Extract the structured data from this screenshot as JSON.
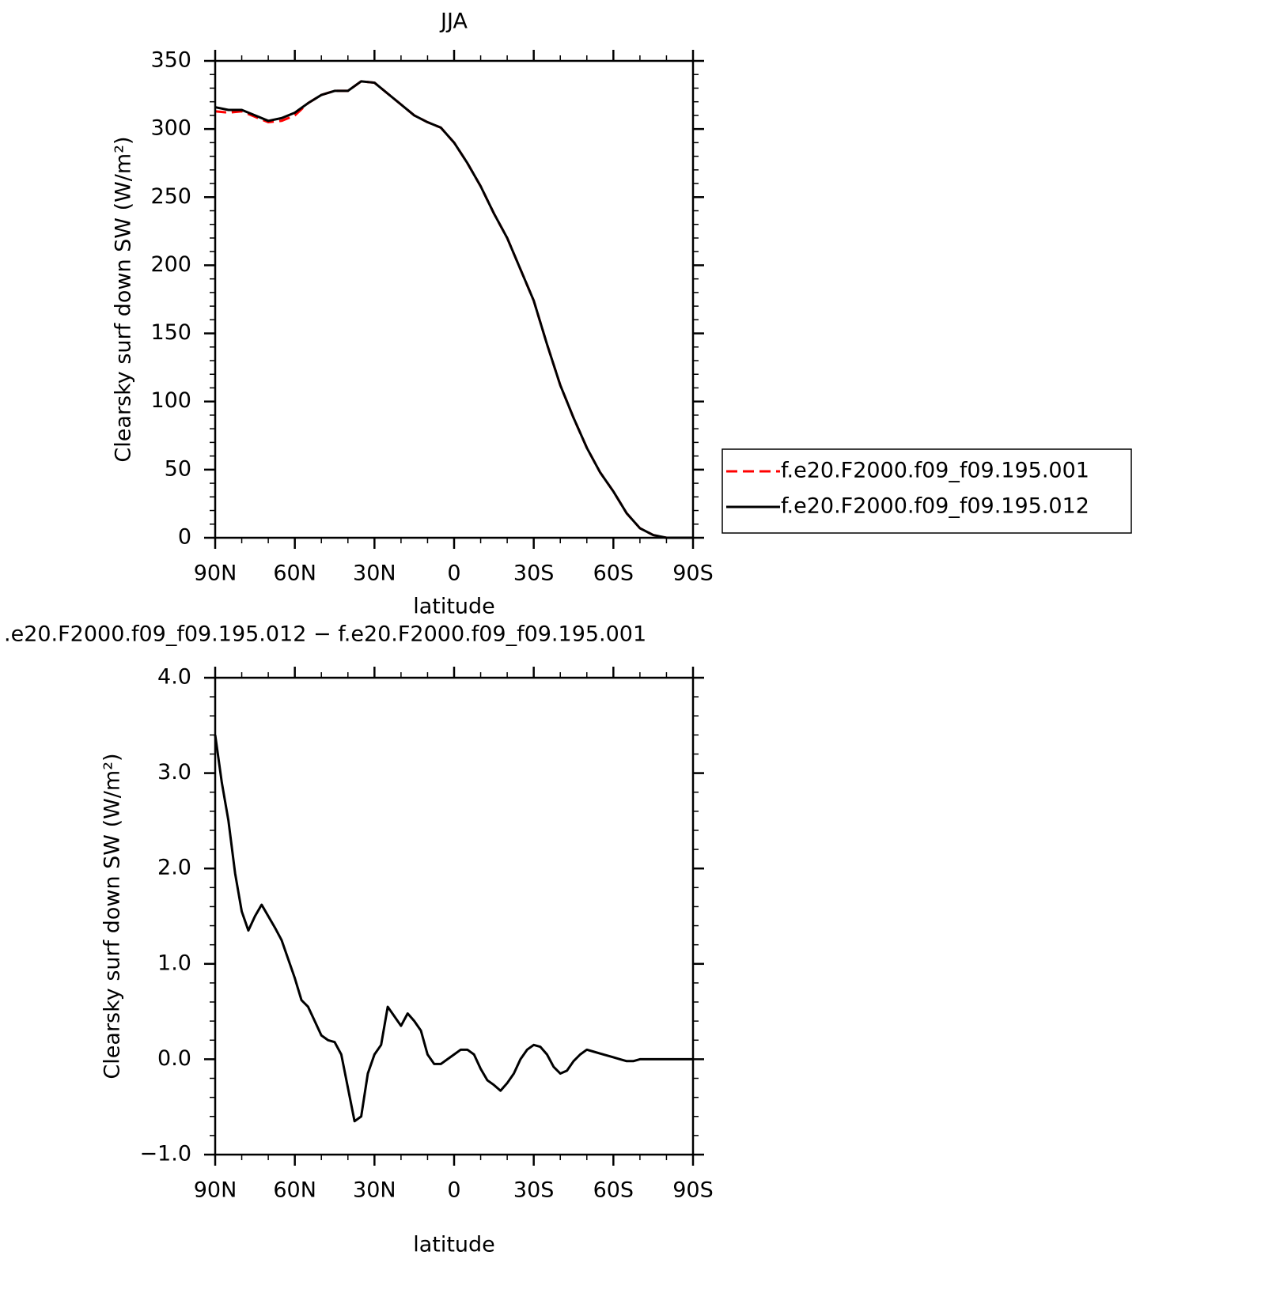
{
  "chart_data": [
    {
      "type": "line",
      "title": "JJA",
      "xlabel": "latitude",
      "ylabel": "Clearsky surf down SW (W/m²)",
      "x": [
        90,
        85,
        80,
        75,
        70,
        65,
        60,
        55,
        50,
        45,
        40,
        35,
        30,
        25,
        20,
        15,
        10,
        5,
        0,
        -5,
        -10,
        -15,
        -20,
        -25,
        -30,
        -35,
        -40,
        -45,
        -50,
        -55,
        -60,
        -65,
        -70,
        -75,
        -80,
        -85,
        -90
      ],
      "series": [
        {
          "name": "f.e20.F2000.f09_f09.195.001",
          "color": "#ff0000",
          "dash": true,
          "values": [
            313,
            312,
            313,
            309,
            305,
            306,
            310,
            319,
            325,
            328,
            328,
            335,
            334,
            326,
            318,
            310,
            305,
            301,
            290,
            275,
            258,
            238,
            220,
            197,
            174,
            142,
            112,
            88,
            66,
            48,
            34,
            18,
            7,
            2,
            0,
            0,
            0
          ]
        },
        {
          "name": "f.e20.F2000.f09_f09.195.012",
          "color": "#000000",
          "dash": false,
          "values": [
            316,
            314,
            314,
            310,
            306,
            308,
            312,
            319,
            325,
            328,
            328,
            335,
            334,
            326,
            318,
            310,
            305,
            301,
            290,
            275,
            258,
            238,
            220,
            197,
            174,
            142,
            112,
            88,
            66,
            48,
            34,
            18,
            7,
            2,
            0,
            0,
            0
          ]
        }
      ],
      "xlim": [
        90,
        -90
      ],
      "xticks": [
        {
          "value": 90,
          "label": "90N"
        },
        {
          "value": 60,
          "label": "60N"
        },
        {
          "value": 30,
          "label": "30N"
        },
        0,
        {
          "value": -30,
          "label": "30S"
        },
        {
          "value": -60,
          "label": "60S"
        },
        {
          "value": -90,
          "label": "90S"
        }
      ],
      "xminorticks": [
        80,
        70,
        50,
        40,
        20,
        10,
        -10,
        -20,
        -40,
        -50,
        -70,
        -80
      ],
      "ylim": [
        0,
        350
      ],
      "yticks": [
        0,
        50,
        100,
        150,
        200,
        250,
        300,
        350
      ],
      "yminorticks": [
        10,
        20,
        30,
        40,
        60,
        70,
        80,
        90,
        110,
        120,
        130,
        140,
        160,
        170,
        180,
        190,
        210,
        220,
        230,
        240,
        260,
        270,
        280,
        290,
        310,
        320,
        330,
        340
      ],
      "legend": "right"
    },
    {
      "type": "line",
      "title": ".e20.F2000.f09_f09.195.012 − f.e20.F2000.f09_f09.195.001",
      "xlabel": "latitude",
      "ylabel": "Clearsky surf down SW (W/m²)",
      "x": [
        90,
        87.5,
        85,
        82.5,
        80,
        77.5,
        75,
        72.5,
        70,
        67.5,
        65,
        62.5,
        60,
        57.5,
        55,
        52.5,
        50,
        47.5,
        45,
        42.5,
        40,
        37.5,
        35,
        32.5,
        30,
        27.5,
        25,
        22.5,
        20,
        17.5,
        15,
        12.5,
        10,
        7.5,
        5,
        2.5,
        0,
        -2.5,
        -5,
        -7.5,
        -10,
        -12.5,
        -15,
        -17.5,
        -20,
        -22.5,
        -25,
        -27.5,
        -30,
        -32.5,
        -35,
        -37.5,
        -40,
        -42.5,
        -45,
        -47.5,
        -50,
        -52.5,
        -55,
        -57.5,
        -60,
        -62.5,
        -65,
        -67.5,
        -70,
        -72.5,
        -75,
        -77.5,
        -80,
        -82.5,
        -85,
        -87.5,
        -90
      ],
      "series": [
        {
          "color": "#000000",
          "dash": false,
          "values": [
            3.4,
            2.9,
            2.5,
            1.95,
            1.55,
            1.35,
            1.5,
            1.62,
            1.5,
            1.38,
            1.25,
            1.05,
            0.85,
            0.62,
            0.55,
            0.4,
            0.25,
            0.2,
            0.18,
            0.05,
            -0.3,
            -0.65,
            -0.6,
            -0.15,
            0.05,
            0.15,
            0.55,
            0.45,
            0.35,
            0.48,
            0.4,
            0.3,
            0.05,
            -0.05,
            -0.05,
            0,
            0.05,
            0.1,
            0.1,
            0.05,
            -0.1,
            -0.22,
            -0.27,
            -0.33,
            -0.25,
            -0.15,
            0,
            0.1,
            0.15,
            0.13,
            0.05,
            -0.08,
            -0.15,
            -0.12,
            -0.02,
            0.05,
            0.1,
            0.08,
            0.06,
            0.04,
            0.02,
            0,
            -0.02,
            -0.02,
            0,
            0,
            0,
            0,
            0,
            0,
            0,
            0,
            0
          ]
        }
      ],
      "xlim": [
        90,
        -90
      ],
      "xticks": [
        {
          "value": 90,
          "label": "90N"
        },
        {
          "value": 60,
          "label": "60N"
        },
        {
          "value": 30,
          "label": "30N"
        },
        0,
        {
          "value": -30,
          "label": "30S"
        },
        {
          "value": -60,
          "label": "60S"
        },
        {
          "value": -90,
          "label": "90S"
        }
      ],
      "xminorticks": [
        80,
        70,
        50,
        40,
        20,
        10,
        -10,
        -20,
        -40,
        -50,
        -70,
        -80
      ],
      "ylim": [
        -1,
        4
      ],
      "yticks": [
        {
          "value": -1,
          "label": "−1.0"
        },
        {
          "value": 0,
          "label": "0.0"
        },
        {
          "value": 1,
          "label": "1.0"
        },
        {
          "value": 2,
          "label": "2.0"
        },
        {
          "value": 3,
          "label": "3.0"
        },
        {
          "value": 4,
          "label": "4.0"
        }
      ],
      "yminorticks": [
        -0.8,
        -0.6,
        -0.4,
        -0.2,
        0.2,
        0.4,
        0.6,
        0.8,
        1.2,
        1.4,
        1.6,
        1.8,
        2.2,
        2.4,
        2.6,
        2.8,
        3.2,
        3.4,
        3.6,
        3.8
      ]
    }
  ]
}
